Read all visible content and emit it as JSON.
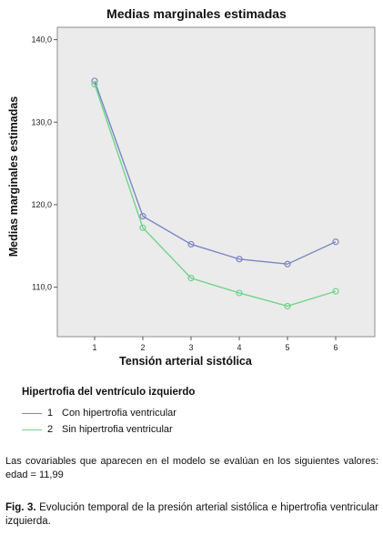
{
  "chart_data": {
    "type": "line",
    "title": "Medias marginales estimadas",
    "xlabel": "Tensión arterial sistólica",
    "ylabel": "Medias marginales estimadas",
    "categories": [
      "1",
      "2",
      "3",
      "4",
      "5",
      "6"
    ],
    "ylim": [
      104.0,
      141.5
    ],
    "yticks": [
      "110,0",
      "120,0",
      "130,0",
      "140,0"
    ],
    "ytick_values": [
      110,
      120,
      130,
      140
    ],
    "grid": false,
    "legend_placement": "bottom",
    "plot_background": "#ebebeb",
    "series": [
      {
        "name": "Con hipertrofia ventricular",
        "code": "1",
        "color": "#7b87c4",
        "values": [
          135.0,
          118.6,
          115.2,
          113.4,
          112.8,
          115.5
        ]
      },
      {
        "name": "Sin hipertrofia ventricular",
        "code": "2",
        "color": "#6fd48c",
        "values": [
          134.6,
          117.2,
          111.1,
          109.3,
          107.7,
          109.5
        ]
      }
    ]
  },
  "legend": {
    "title": "Hipertrofia del ventrículo izquierdo",
    "items": [
      {
        "code": "1",
        "label": "Con hipertrofia ventricular",
        "color": "#7b87c4"
      },
      {
        "code": "2",
        "label": "Sin hipertrofia ventricular",
        "color": "#6fd48c"
      }
    ]
  },
  "note": "Las covariables que aparecen en el modelo se evalúan en los siguientes valores: edad = 11,99",
  "caption": {
    "label": "Fig. 3.",
    "text": " Evolución temporal de la presión arterial sistólica e hipertrofia ventricular izquierda."
  }
}
